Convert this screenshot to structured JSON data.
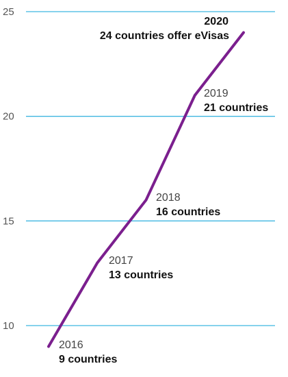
{
  "chart_data": {
    "type": "line",
    "title": "",
    "xlabel": "",
    "ylabel": "",
    "ylim": [
      10,
      25
    ],
    "y_ticks": [
      10,
      15,
      20,
      25
    ],
    "grid": true,
    "x": [
      2016,
      2017,
      2018,
      2019,
      2020
    ],
    "series": [
      {
        "values": [
          9,
          13,
          16,
          21,
          24
        ],
        "color": "#7b1f8e"
      }
    ],
    "annotations": [
      {
        "year": "2016",
        "label": "9 countries",
        "bold_year": false
      },
      {
        "year": "2017",
        "label": "13 countries",
        "bold_year": false
      },
      {
        "year": "2018",
        "label": "16 countries",
        "bold_year": false
      },
      {
        "year": "2019",
        "label": "21 countries",
        "bold_year": false
      },
      {
        "year": "2020",
        "label": "24 countries offer eVisas",
        "bold_year": true
      }
    ],
    "colors": {
      "grid": "#3fb6e0",
      "line": "#7b1f8e"
    }
  }
}
